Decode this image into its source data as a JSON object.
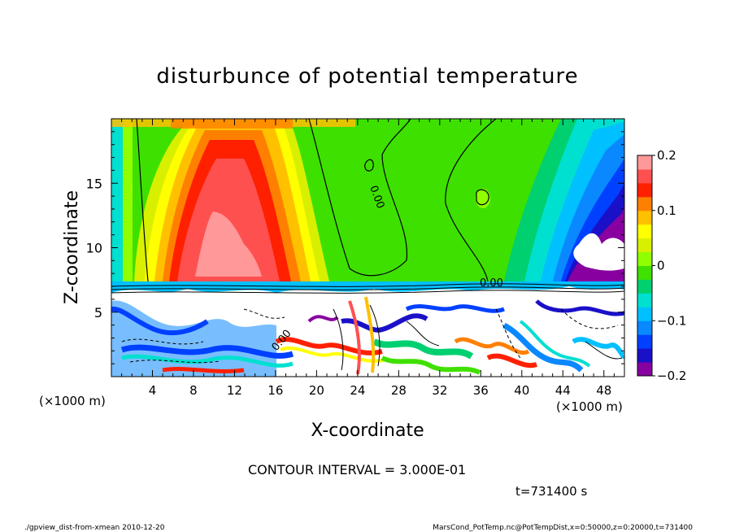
{
  "chart_data": {
    "type": "heatmap",
    "title": "disturbunce of potential temperature",
    "xlabel": "X-coordinate",
    "ylabel": "Z-coordinate",
    "x_unit": "(×1000 m)",
    "x_unit_right": "(×1000 m)",
    "x_ticks": [
      "4",
      "8",
      "12",
      "16",
      "20",
      "24",
      "28",
      "32",
      "36",
      "40",
      "44",
      "48"
    ],
    "x_tick_values": [
      4,
      8,
      12,
      16,
      20,
      24,
      28,
      32,
      36,
      40,
      44,
      48
    ],
    "y_ticks": [
      "5",
      "10",
      "15"
    ],
    "y_tick_values": [
      5,
      10,
      15
    ],
    "xlim": [
      0,
      50
    ],
    "ylim": [
      0,
      20
    ],
    "colorbar": {
      "ticks": [
        "0.2",
        "0.1",
        "0",
        "−0.1",
        "−0.2"
      ],
      "tick_values": [
        0.2,
        0.1,
        0,
        -0.1,
        -0.2
      ],
      "range": [
        -0.2,
        0.2
      ],
      "colors": [
        "#8800a0",
        "#1a10c8",
        "#0040ff",
        "#0a88ff",
        "#00c0ff",
        "#00e0d0",
        "#00d070",
        "#40e000",
        "#90ff00",
        "#d8f000",
        "#ffff00",
        "#ffc000",
        "#ff8000",
        "#ff2000",
        "#ff5050",
        "#ff9898"
      ]
    },
    "contour_interval": "CONTOUR INTERVAL = 3.000E-01",
    "contour_labels": [
      "0.00",
      "0.00",
      "0.00"
    ],
    "time": "t=731400 s"
  },
  "footer": {
    "left": "./gpview_dist-from-xmean  2010-12-20",
    "right": "MarsCond_PotTemp.nc@PotTempDist,x=0:50000,z=0:20000,t=731400"
  },
  "colors": {
    "background": "#ffffff",
    "upper_neutral": "#3ee000",
    "positive_peak": "#ff9a9a",
    "negative_peak": "#8800a0"
  }
}
